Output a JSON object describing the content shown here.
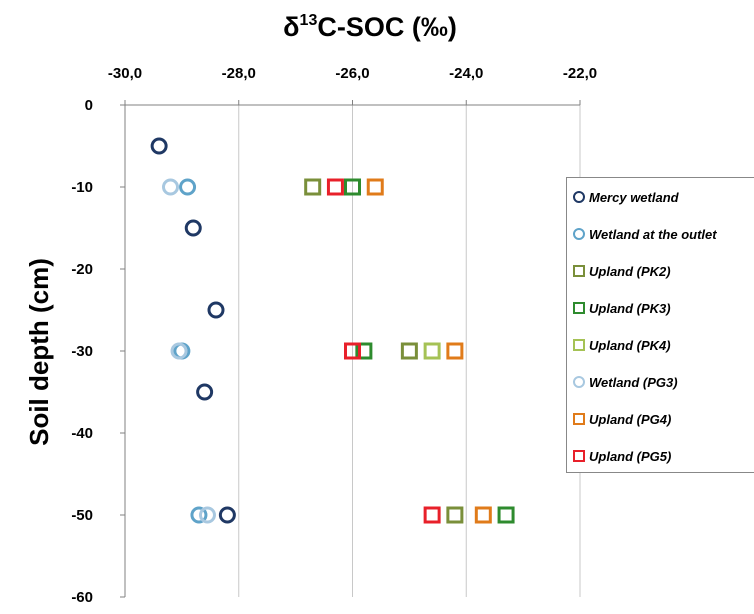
{
  "chart_data": {
    "type": "scatter",
    "title": "δ13C-SOC (‰)",
    "title_parts": {
      "prefix": "δ",
      "sup": "13",
      "suffix": "C-SOC (‰)"
    },
    "xlabel": "δ13C-SOC (‰)",
    "ylabel": "Soil depth (cm)",
    "xlim": [
      -30,
      -22
    ],
    "ylim": [
      -60,
      0
    ],
    "x_ticks": [
      -30,
      -28,
      -26,
      -24,
      -22
    ],
    "x_tick_labels": [
      "-30,0",
      "-28,0",
      "-26,0",
      "-24,0",
      "-22,0"
    ],
    "y_ticks": [
      0,
      -10,
      -20,
      -30,
      -40,
      -50,
      -60
    ],
    "y_tick_labels": [
      "0",
      "-10",
      "-20",
      "-30",
      "-40",
      "-50",
      "-60"
    ],
    "x_axis_position": "top",
    "grid": "vertical",
    "legend_position": "right",
    "series": [
      {
        "name": "Mercy wetland",
        "marker": "circle",
        "color": "#1f3864",
        "points": [
          [
            -29.4,
            -5
          ],
          [
            -28.8,
            -15
          ],
          [
            -28.4,
            -25
          ],
          [
            -28.6,
            -35
          ],
          [
            -28.2,
            -50
          ]
        ]
      },
      {
        "name": "Wetland at the outlet",
        "marker": "circle",
        "color": "#5fa3c9",
        "points": [
          [
            -28.9,
            -10
          ],
          [
            -29.0,
            -30
          ],
          [
            -28.7,
            -50
          ]
        ]
      },
      {
        "name": "Upland (PK2)",
        "marker": "square",
        "color": "#7a8f3a",
        "points": [
          [
            -26.7,
            -10
          ],
          [
            -25.0,
            -30
          ],
          [
            -24.2,
            -50
          ]
        ]
      },
      {
        "name": "Upland (PK3)",
        "marker": "square",
        "color": "#2e8b2e",
        "points": [
          [
            -26.0,
            -10
          ],
          [
            -25.8,
            -30
          ],
          [
            -23.3,
            -50
          ]
        ]
      },
      {
        "name": "Upland (PK4)",
        "marker": "square",
        "color": "#a5c255",
        "points": [
          [
            -24.6,
            -30
          ]
        ]
      },
      {
        "name": "Wetland (PG3)",
        "marker": "circle",
        "color": "#a8c8e0",
        "points": [
          [
            -29.2,
            -10
          ],
          [
            -29.05,
            -30
          ],
          [
            -28.55,
            -50
          ]
        ]
      },
      {
        "name": "Upland (PG4)",
        "marker": "square",
        "color": "#e07b1a",
        "points": [
          [
            -25.6,
            -10
          ],
          [
            -24.2,
            -30
          ],
          [
            -23.7,
            -50
          ]
        ]
      },
      {
        "name": "Upland (PG5)",
        "marker": "square",
        "color": "#e8202a",
        "points": [
          [
            -26.3,
            -10
          ],
          [
            -26.0,
            -30
          ],
          [
            -24.6,
            -50
          ]
        ]
      }
    ]
  },
  "legend": {
    "items": [
      {
        "label": "Mercy wetland",
        "marker": "circle",
        "color": "#1f3864"
      },
      {
        "label": "Wetland at the outlet",
        "marker": "circle",
        "color": "#5fa3c9"
      },
      {
        "label": "Upland (PK2)",
        "marker": "square",
        "color": "#7a8f3a"
      },
      {
        "label": "Upland (PK3)",
        "marker": "square",
        "color": "#2e8b2e"
      },
      {
        "label": "Upland (PK4)",
        "marker": "square",
        "color": "#a5c255"
      },
      {
        "label": "Wetland (PG3)",
        "marker": "circle",
        "color": "#a8c8e0"
      },
      {
        "label": "Upland (PG4)",
        "marker": "square",
        "color": "#e07b1a"
      },
      {
        "label": "Upland (PG5)",
        "marker": "square",
        "color": "#e8202a"
      }
    ]
  }
}
